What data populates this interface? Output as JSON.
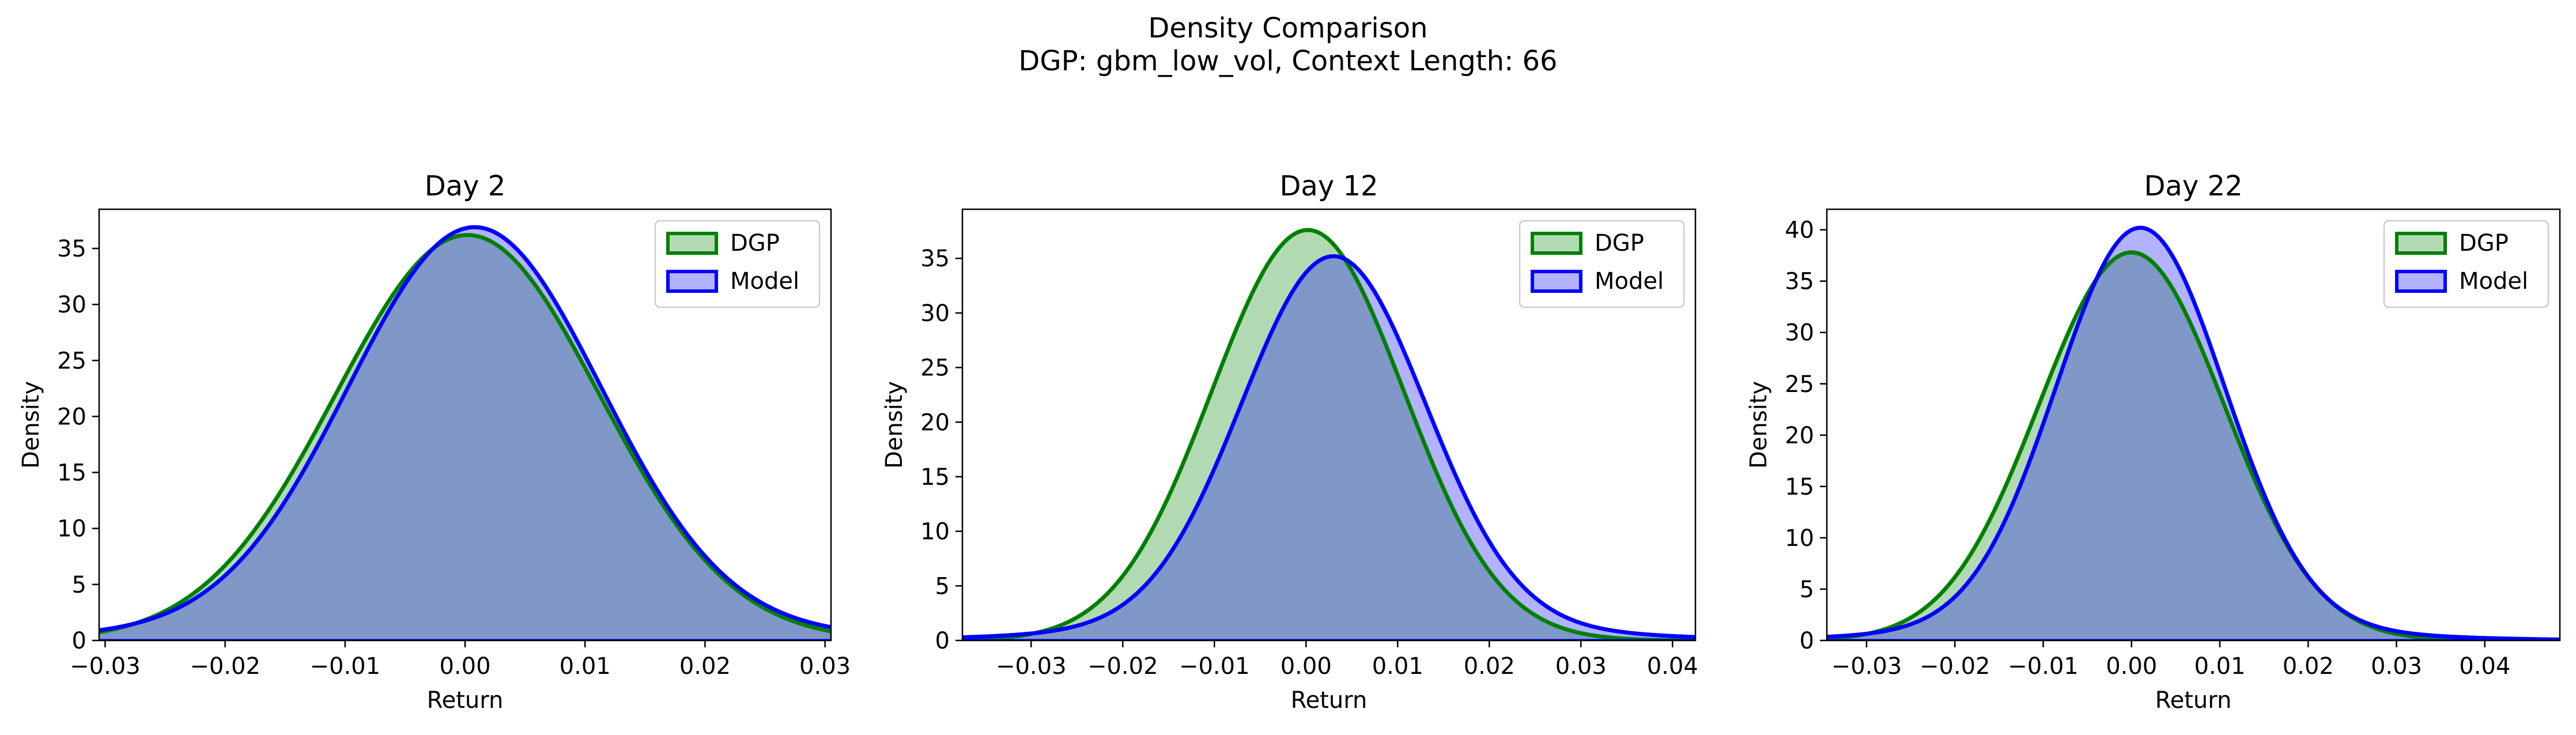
{
  "figure": {
    "title_line1": "Density Comparison",
    "title_line2": "DGP: gbm_low_vol, Context Length: 66"
  },
  "colors": {
    "dgp_line": "#008000",
    "dgp_fill": "#b2dab2",
    "model_line": "#0000ff",
    "model_fill": "#b2b2ff",
    "overlap_fill": "#7f98c8"
  },
  "chart_data": [
    {
      "type": "area",
      "title": "Day 2",
      "xlabel": "Return",
      "ylabel": "Density",
      "xlim": [
        -0.0305,
        0.0305
      ],
      "ylim": [
        0,
        38.5
      ],
      "xticks": [
        -0.03,
        -0.02,
        -0.01,
        0.0,
        0.01,
        0.02,
        0.03
      ],
      "xtick_labels": [
        "−0.03",
        "−0.02",
        "−0.01",
        "0.00",
        "0.01",
        "0.02",
        "0.03"
      ],
      "yticks": [
        0,
        5,
        10,
        15,
        20,
        25,
        30,
        35
      ],
      "ytick_labels": [
        "0",
        "5",
        "10",
        "15",
        "20",
        "25",
        "30",
        "35"
      ],
      "legend": {
        "position": "upper right",
        "entries": [
          "DGP",
          "Model"
        ]
      },
      "series": [
        {
          "name": "DGP",
          "mu": 0.0002,
          "sigma": 0.011,
          "peak": 36.2,
          "tail_w": 0,
          "tail_sigma": 0.02
        },
        {
          "name": "Model",
          "mu": 0.0008,
          "sigma": 0.0105,
          "peak": 36.9,
          "tail_w": 0.03,
          "tail_sigma": 0.025
        }
      ]
    },
    {
      "type": "area",
      "title": "Day 12",
      "xlabel": "Return",
      "ylabel": "Density",
      "xlim": [
        -0.0375,
        0.0425
      ],
      "ylim": [
        0,
        39.5
      ],
      "xticks": [
        -0.03,
        -0.02,
        -0.01,
        0.0,
        0.01,
        0.02,
        0.03,
        0.04
      ],
      "xtick_labels": [
        "−0.03",
        "−0.02",
        "−0.01",
        "0.00",
        "0.01",
        "0.02",
        "0.03",
        "0.04"
      ],
      "yticks": [
        0,
        5,
        10,
        15,
        20,
        25,
        30,
        35
      ],
      "ytick_labels": [
        "0",
        "5",
        "10",
        "15",
        "20",
        "25",
        "30",
        "35"
      ],
      "legend": {
        "position": "upper right",
        "entries": [
          "DGP",
          "Model"
        ]
      },
      "series": [
        {
          "name": "DGP",
          "mu": 0.0002,
          "sigma": 0.0105,
          "peak": 37.6,
          "tail_w": 0,
          "tail_sigma": 0.02
        },
        {
          "name": "Model",
          "mu": 0.003,
          "sigma": 0.01,
          "peak": 35.2,
          "tail_w": 0.045,
          "tail_sigma": 0.022
        }
      ]
    },
    {
      "type": "area",
      "title": "Day 22",
      "xlabel": "Return",
      "ylabel": "Density",
      "xlim": [
        -0.0345,
        0.0485
      ],
      "ylim": [
        0,
        42.0
      ],
      "xticks": [
        -0.03,
        -0.02,
        -0.01,
        0.0,
        0.01,
        0.02,
        0.03,
        0.04
      ],
      "xtick_labels": [
        "−0.03",
        "−0.02",
        "−0.01",
        "0.00",
        "0.01",
        "0.02",
        "0.03",
        "0.04"
      ],
      "yticks": [
        0,
        5,
        10,
        15,
        20,
        25,
        30,
        35,
        40
      ],
      "ytick_labels": [
        "0",
        "5",
        "10",
        "15",
        "20",
        "25",
        "30",
        "35",
        "40"
      ],
      "legend": {
        "position": "upper right",
        "entries": [
          "DGP",
          "Model"
        ]
      },
      "series": [
        {
          "name": "DGP",
          "mu": 0.0,
          "sigma": 0.0105,
          "peak": 37.8,
          "tail_w": 0,
          "tail_sigma": 0.02
        },
        {
          "name": "Model",
          "mu": 0.001,
          "sigma": 0.0095,
          "peak": 40.2,
          "tail_w": 0.04,
          "tail_sigma": 0.02
        }
      ]
    }
  ]
}
